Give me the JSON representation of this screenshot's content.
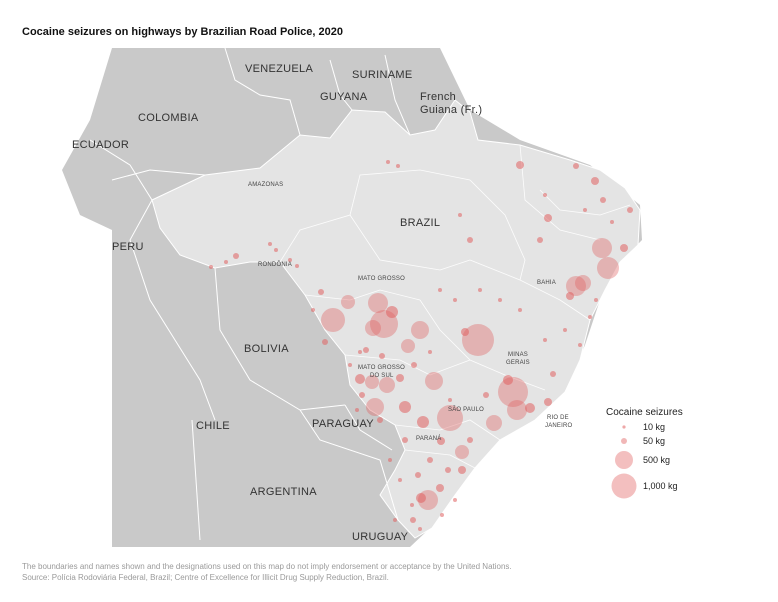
{
  "title": "Cocaine seizures on highways by Brazilian Road Police, 2020",
  "colors": {
    "land": "#c9c9c9",
    "brazil": "#e2e2e2",
    "border": "#ffffff",
    "bubble": "#e06060"
  },
  "countries": [
    {
      "name": "VENEZUELA"
    },
    {
      "name": "SURINAME"
    },
    {
      "name": "GUYANA"
    },
    {
      "name": "French Guiana (Fr.)",
      "line1": "French",
      "line2": "Guiana (Fr.)"
    },
    {
      "name": "COLOMBIA"
    },
    {
      "name": "ECUADOR"
    },
    {
      "name": "BRAZIL"
    },
    {
      "name": "PERU"
    },
    {
      "name": "BOLIVIA"
    },
    {
      "name": "CHILE"
    },
    {
      "name": "PARAGUAY"
    },
    {
      "name": "ARGENTINA"
    },
    {
      "name": "URUGUAY"
    }
  ],
  "states": [
    {
      "line1": "AMAZONAS",
      "line2": ""
    },
    {
      "line1": "RONDÔNIA",
      "line2": ""
    },
    {
      "line1": "MATO GROSSO",
      "line2": ""
    },
    {
      "line1": "BAHIA",
      "line2": ""
    },
    {
      "line1": "MINAS",
      "line2": "GERAIS"
    },
    {
      "line1": "MATO GROSSO",
      "line2": "DO SUL"
    },
    {
      "line1": "SÃO PAULO",
      "line2": ""
    },
    {
      "line1": "RIO DE",
      "line2": "JANEIRO"
    },
    {
      "line1": "PARANÁ",
      "line2": ""
    }
  ],
  "legend": {
    "title": "Cocaine seizures",
    "items": [
      {
        "label": "10 kg",
        "kg": 10
      },
      {
        "label": "50 kg",
        "kg": 50
      },
      {
        "label": "500 kg",
        "kg": 500
      },
      {
        "label": "1,000 kg",
        "kg": 1000
      }
    ]
  },
  "footer": {
    "disclaimer": "The boundaries and names shown and the designations used on this map do not imply endorsement or acceptance by the United Nations.",
    "source": "Source: Polícia Rodoviária Federal, Brazil; Centre of Excellence for Illicit Drug Supply Reduction, Brazil."
  }
}
